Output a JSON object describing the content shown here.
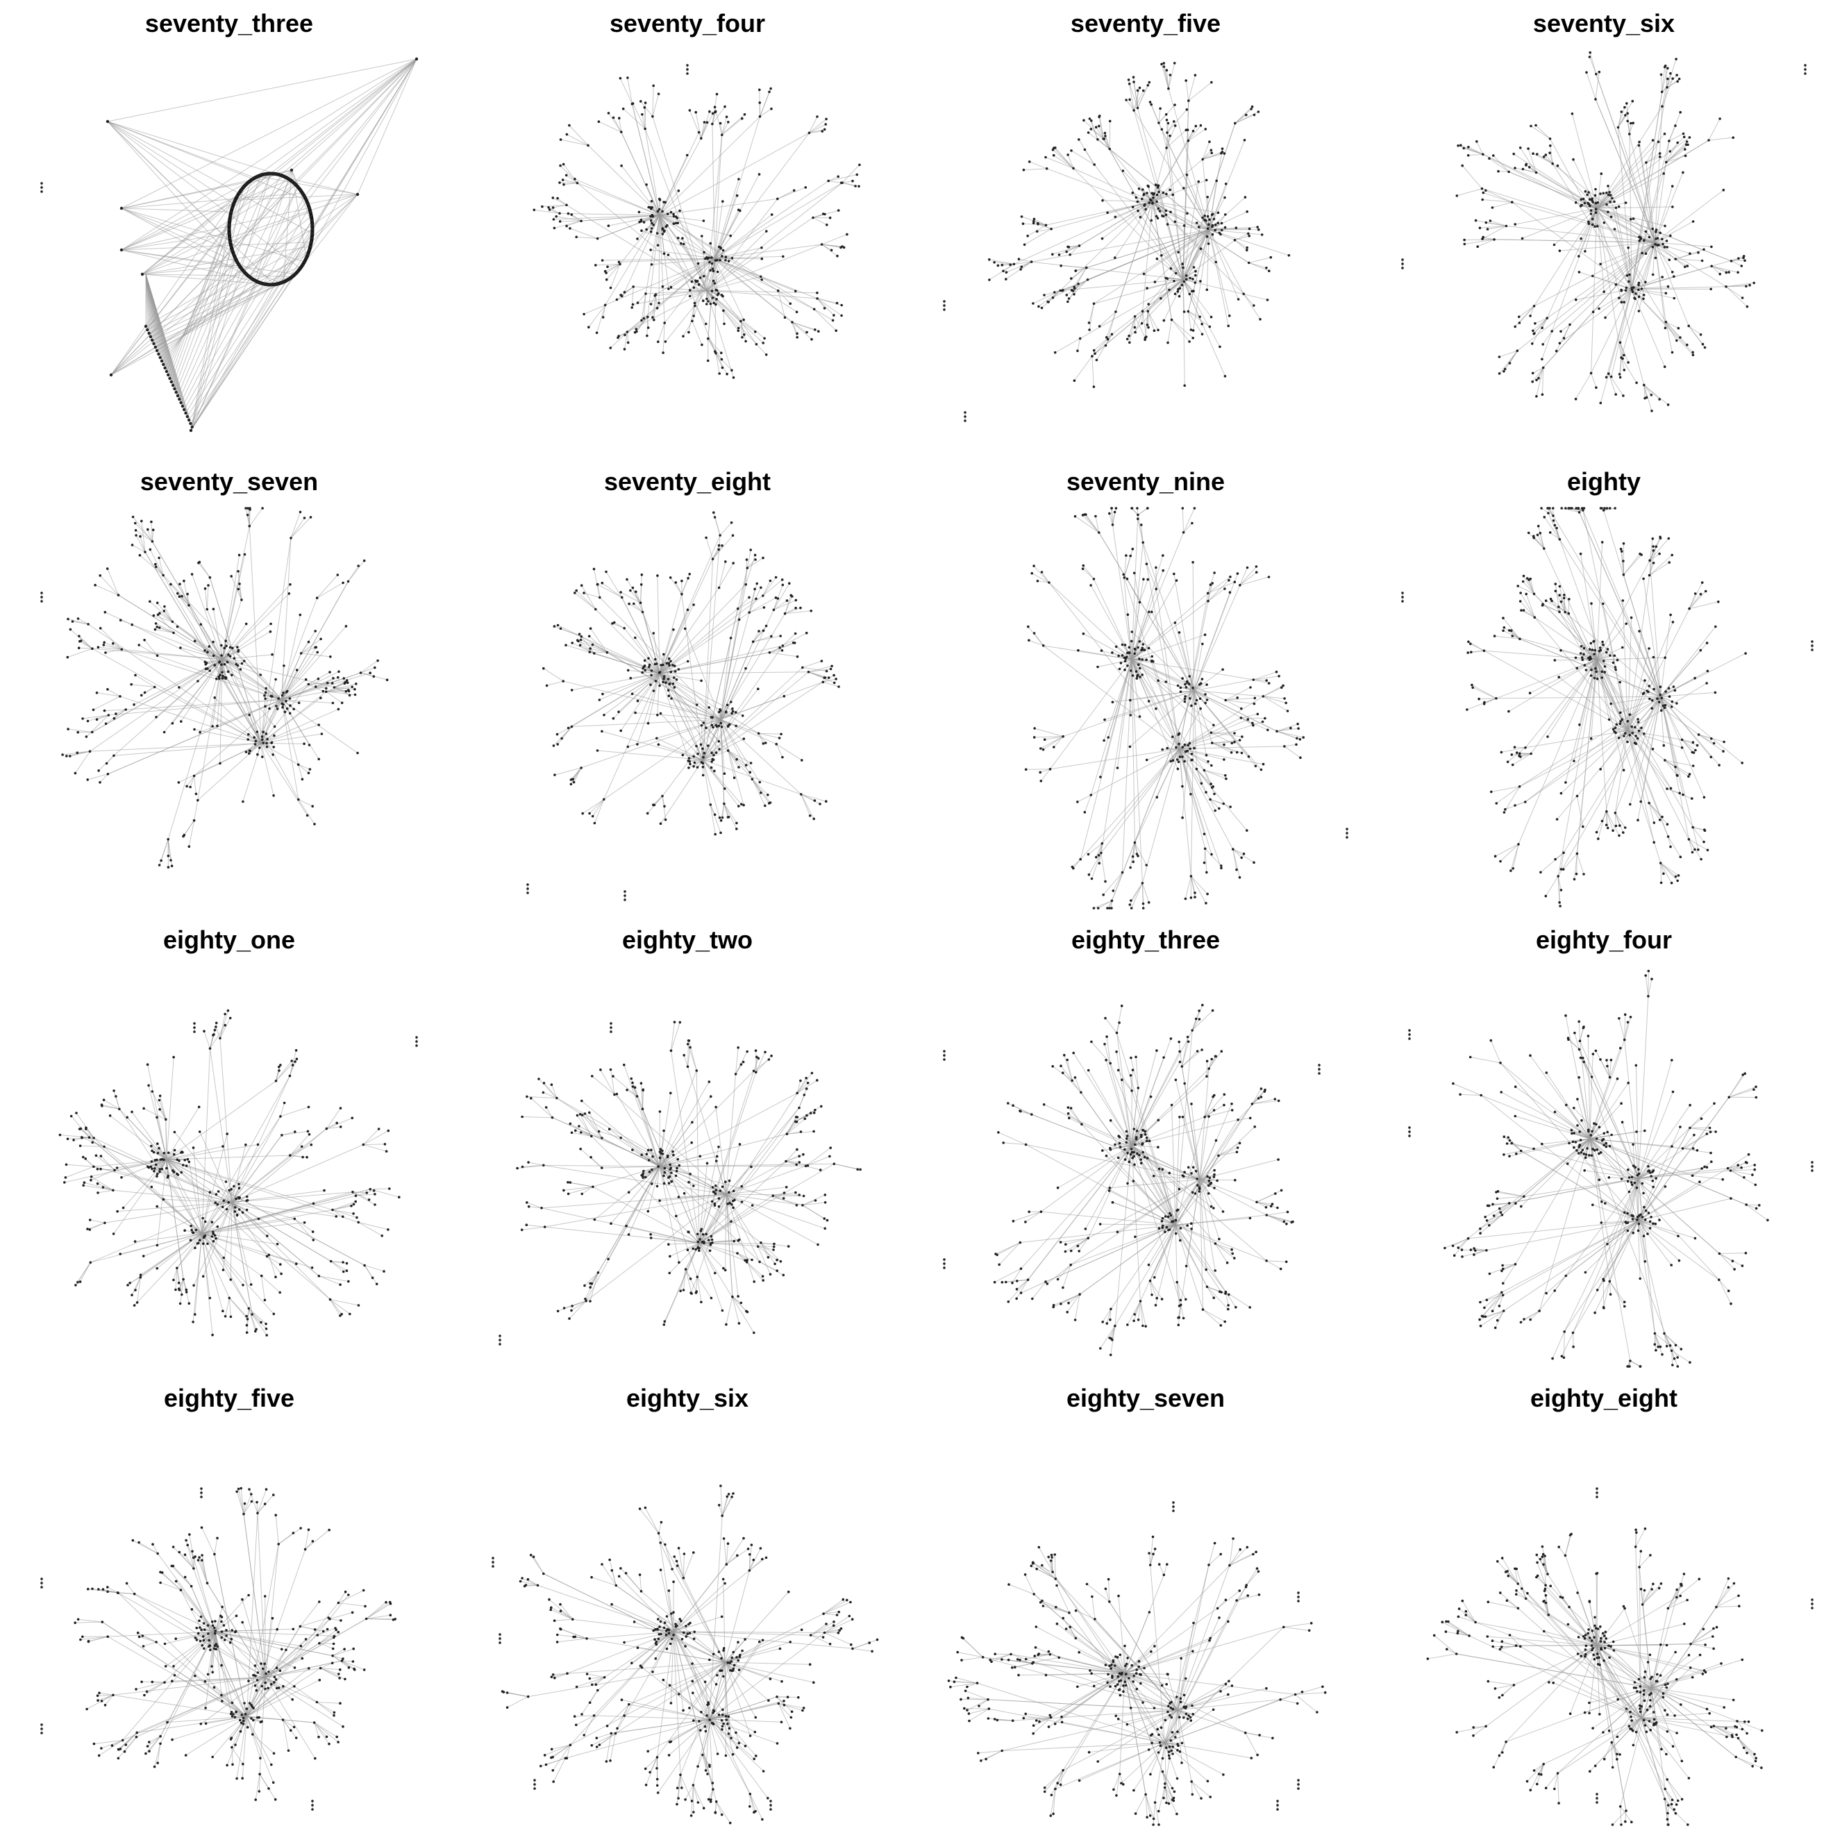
{
  "panels": [
    {
      "id": "seventy_three",
      "title": "seventy_three"
    },
    {
      "id": "seventy_four",
      "title": "seventy_four"
    },
    {
      "id": "seventy_five",
      "title": "seventy_five"
    },
    {
      "id": "seventy_six",
      "title": "seventy_six"
    },
    {
      "id": "seventy_seven",
      "title": "seventy_seven"
    },
    {
      "id": "seventy_eight",
      "title": "seventy_eight"
    },
    {
      "id": "seventy_nine",
      "title": "seventy_nine"
    },
    {
      "id": "eighty",
      "title": "eighty"
    },
    {
      "id": "eighty_one",
      "title": "eighty_one"
    },
    {
      "id": "eighty_two",
      "title": "eighty_two"
    },
    {
      "id": "eighty_three",
      "title": "eighty_three"
    },
    {
      "id": "eighty_four",
      "title": "eighty_four"
    },
    {
      "id": "eighty_five",
      "title": "eighty_five"
    },
    {
      "id": "eighty_six",
      "title": "eighty_six"
    },
    {
      "id": "eighty_seven",
      "title": "eighty_seven"
    },
    {
      "id": "eighty_eight",
      "title": "eighty_eight"
    }
  ],
  "colors": {
    "background": "#ffffff",
    "edge": "#9a9a9a",
    "node": "#222222",
    "title": "#000000"
  }
}
